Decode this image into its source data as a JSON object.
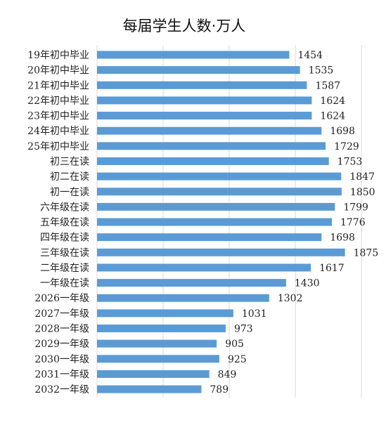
{
  "chart_data": {
    "type": "bar",
    "orientation": "horizontal",
    "title": "每届学生人数·万人",
    "xlabel": "",
    "ylabel": "",
    "xlim": [
      0,
      2000
    ],
    "grid": true,
    "bar_color": "#5b9bd5",
    "categories": [
      "19年初中毕业",
      "20年初中毕业",
      "21年初中毕业",
      "22年初中毕业",
      "23年初中毕业",
      "24年初中毕业",
      "25年初中毕业",
      "初三在读",
      "初二在读",
      "初一在读",
      "六年级在读",
      "五年级在读",
      "四年级在读",
      "三年级在读",
      "二年级在读",
      "一年级在读",
      "2026一年级",
      "2027一年级",
      "2028一年级",
      "2029一年级",
      "2030一年级",
      "2031一年级",
      "2032一年级"
    ],
    "values": [
      1454,
      1535,
      1587,
      1624,
      1624,
      1698,
      1729,
      1753,
      1847,
      1850,
      1799,
      1776,
      1698,
      1875,
      1617,
      1430,
      1302,
      1031,
      973,
      905,
      925,
      849,
      789
    ]
  }
}
